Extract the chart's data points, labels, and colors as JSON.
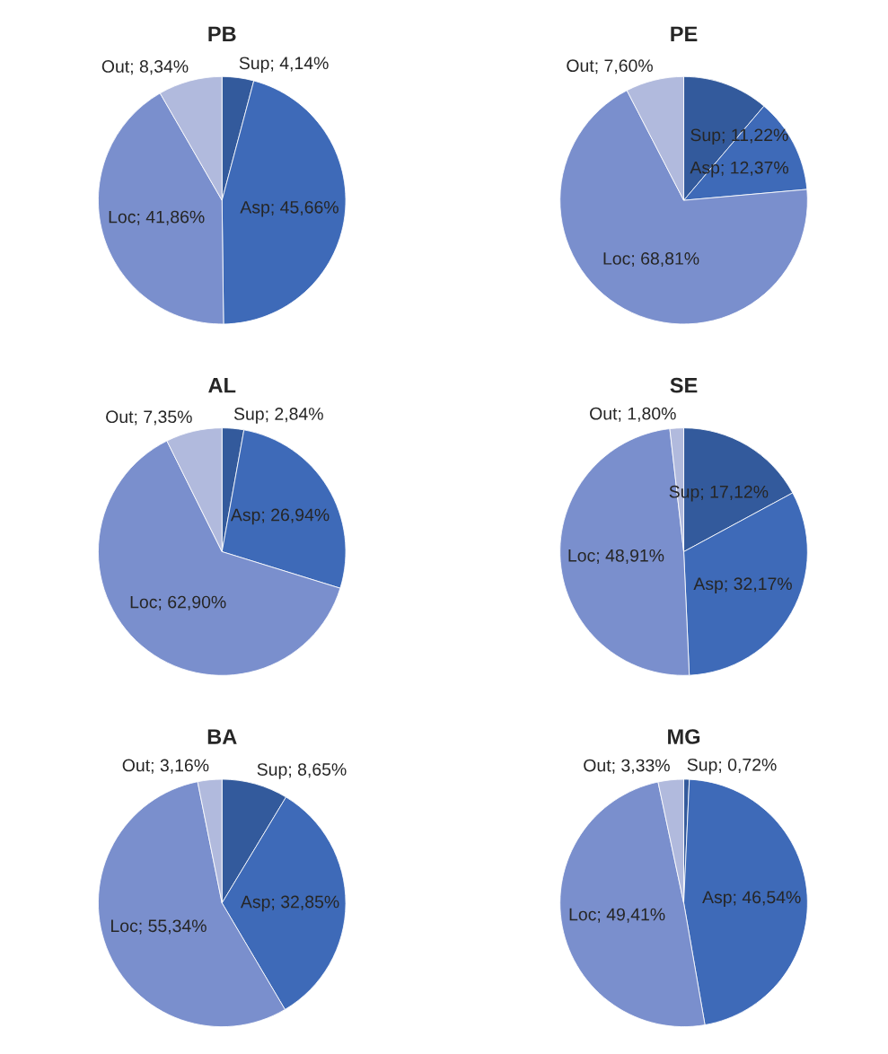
{
  "chart_data": [
    {
      "type": "pie",
      "title": "PB",
      "categories": [
        "Sup",
        "Asp",
        "Loc",
        "Out"
      ],
      "values": [
        4.14,
        45.66,
        41.86,
        8.34
      ],
      "value_labels": [
        "4,14%",
        "45,66%",
        "41,86%",
        "8,34%"
      ],
      "colors": [
        "#335a9c",
        "#3e6ab8",
        "#7a8fcd",
        "#b1badd"
      ]
    },
    {
      "type": "pie",
      "title": "PE",
      "categories": [
        "Sup",
        "Asp",
        "Loc",
        "Out"
      ],
      "values": [
        11.22,
        12.37,
        68.81,
        7.6
      ],
      "value_labels": [
        "11,22%",
        "12,37%",
        "68,81%",
        "7,60%"
      ],
      "colors": [
        "#335a9c",
        "#3e6ab8",
        "#7a8fcd",
        "#b1badd"
      ]
    },
    {
      "type": "pie",
      "title": "AL",
      "categories": [
        "Sup",
        "Asp",
        "Loc",
        "Out"
      ],
      "values": [
        2.84,
        26.94,
        62.9,
        7.35
      ],
      "value_labels": [
        "2,84%",
        "26,94%",
        "62,90%",
        "7,35%"
      ],
      "colors": [
        "#335a9c",
        "#3e6ab8",
        "#7a8fcd",
        "#b1badd"
      ]
    },
    {
      "type": "pie",
      "title": "SE",
      "categories": [
        "Sup",
        "Asp",
        "Loc",
        "Out"
      ],
      "values": [
        17.12,
        32.17,
        48.91,
        1.8
      ],
      "value_labels": [
        "17,12%",
        "32,17%",
        "48,91%",
        "1,80%"
      ],
      "colors": [
        "#335a9c",
        "#3e6ab8",
        "#7a8fcd",
        "#b1badd"
      ]
    },
    {
      "type": "pie",
      "title": "BA",
      "categories": [
        "Sup",
        "Asp",
        "Loc",
        "Out"
      ],
      "values": [
        8.65,
        32.85,
        55.34,
        3.16
      ],
      "value_labels": [
        "8,65%",
        "32,85%",
        "55,34%",
        "3,16%"
      ],
      "colors": [
        "#335a9c",
        "#3e6ab8",
        "#7a8fcd",
        "#b1badd"
      ]
    },
    {
      "type": "pie",
      "title": "MG",
      "categories": [
        "Sup",
        "Asp",
        "Loc",
        "Out"
      ],
      "values": [
        0.72,
        46.54,
        49.41,
        3.33
      ],
      "value_labels": [
        "0,72%",
        "46,54%",
        "49,41%",
        "3,33%"
      ],
      "colors": [
        "#335a9c",
        "#3e6ab8",
        "#7a8fcd",
        "#b1badd"
      ]
    }
  ]
}
